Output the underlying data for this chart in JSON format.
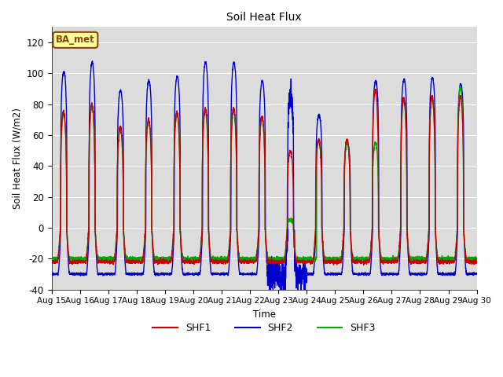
{
  "title": "Soil Heat Flux",
  "ylabel": "Soil Heat Flux (W/m2)",
  "xlabel": "Time",
  "ylim": [
    -40,
    130
  ],
  "yticks": [
    -40,
    -20,
    0,
    20,
    40,
    60,
    80,
    100,
    120
  ],
  "xtick_labels": [
    "Aug 15",
    "Aug 16",
    "Aug 17",
    "Aug 18",
    "Aug 19",
    "Aug 20",
    "Aug 21",
    "Aug 22",
    "Aug 23",
    "Aug 24",
    "Aug 25",
    "Aug 26",
    "Aug 27",
    "Aug 28",
    "Aug 29",
    "Aug 30"
  ],
  "colors": {
    "SHF1": "#CC0000",
    "SHF2": "#0000CC",
    "SHF3": "#00AA00"
  },
  "linewidth": 1.0,
  "background_color": "#DCDCDC",
  "annotation_text": "BA_met",
  "annotation_bg": "#FFFF99",
  "annotation_border": "#8B4513"
}
